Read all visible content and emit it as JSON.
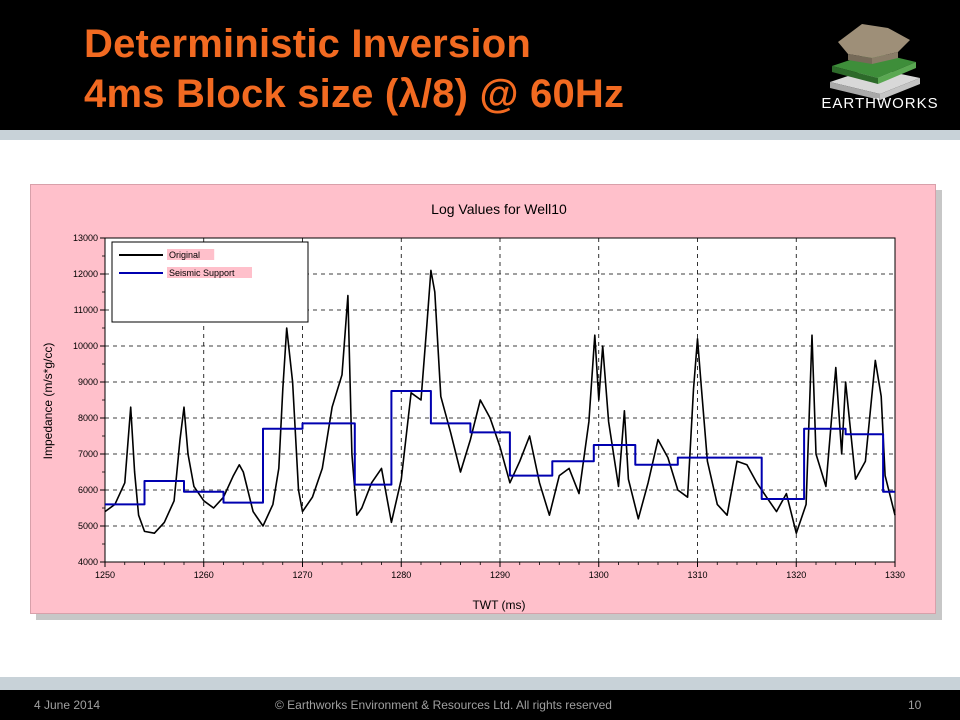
{
  "slide": {
    "title_line_1": "Deterministic Inversion",
    "title_line_2": "4ms Block size (λ/8) @ 60Hz",
    "logo_text": "EARTHWORKS",
    "footer_date": "4 June 2014",
    "footer_copyright": "© Earthworks Environment & Resources Ltd.  All rights reserved",
    "footer_page": "10"
  },
  "colors": {
    "title": "#f26a21",
    "panel_background": "#ffc0cb",
    "original_series": "#000000",
    "seismic_series": "#0000b0",
    "grid": "#000000"
  },
  "chart_data": {
    "type": "line",
    "title": "Log Values for Well10",
    "xlabel": "TWT (ms)",
    "ylabel": "Impedance (m/s*g/cc)",
    "xlim": [
      1250,
      1330
    ],
    "ylim": [
      4000,
      13000
    ],
    "x_ticks": [
      1250,
      1260,
      1270,
      1280,
      1290,
      1300,
      1310,
      1320,
      1330
    ],
    "y_ticks": [
      4000,
      5000,
      6000,
      7000,
      8000,
      9000,
      10000,
      11000,
      12000,
      13000
    ],
    "grid": "dashed",
    "legend_position": "top-left",
    "series": [
      {
        "name": "Original",
        "style": "line",
        "x": [
          1250,
          1251,
          1252,
          1252.6,
          1253,
          1253.4,
          1254,
          1255,
          1256,
          1257,
          1257.6,
          1258,
          1258.4,
          1259,
          1260,
          1261,
          1262,
          1263,
          1263.6,
          1264,
          1265,
          1266,
          1267,
          1267.6,
          1268,
          1268.4,
          1269,
          1269.6,
          1270,
          1271,
          1272,
          1273,
          1274,
          1274.6,
          1275,
          1275.5,
          1276,
          1277,
          1278,
          1279,
          1280,
          1281,
          1282,
          1282.6,
          1283,
          1283.4,
          1284,
          1285,
          1286,
          1287,
          1288,
          1289,
          1290,
          1291,
          1292,
          1293,
          1294,
          1295,
          1296,
          1297,
          1298,
          1299,
          1299.6,
          1300,
          1300.4,
          1301,
          1302,
          1302.6,
          1303,
          1304,
          1305,
          1306,
          1307,
          1308,
          1309,
          1309.6,
          1310,
          1310.4,
          1311,
          1312,
          1313,
          1314,
          1315,
          1316,
          1317,
          1318,
          1319,
          1320,
          1321,
          1321.6,
          1322,
          1323,
          1324,
          1324.6,
          1325,
          1326,
          1327,
          1328,
          1328.6,
          1329,
          1330
        ],
        "y": [
          5400,
          5600,
          6200,
          8300,
          6500,
          5300,
          4850,
          4800,
          5100,
          5700,
          7400,
          8300,
          7000,
          6100,
          5700,
          5500,
          5800,
          6400,
          6700,
          6500,
          5400,
          5000,
          5600,
          6600,
          8800,
          10500,
          9000,
          6000,
          5400,
          5800,
          6600,
          8300,
          9200,
          11400,
          7000,
          5300,
          5500,
          6200,
          6600,
          5100,
          6300,
          8700,
          8500,
          10600,
          12100,
          11500,
          8600,
          7600,
          6500,
          7400,
          8500,
          8000,
          7200,
          6200,
          6800,
          7500,
          6200,
          5300,
          6400,
          6600,
          5900,
          7900,
          10300,
          8500,
          10000,
          7900,
          6100,
          8200,
          6300,
          5200,
          6200,
          7400,
          6900,
          6000,
          5800,
          8800,
          10200,
          8800,
          6800,
          5600,
          5300,
          6800,
          6700,
          6200,
          5800,
          5400,
          5900,
          4800,
          5600,
          10300,
          7000,
          6100,
          9400,
          7000,
          9000,
          6300,
          6800,
          9600,
          8600,
          6400,
          5300
        ]
      },
      {
        "name": "Seismic Support",
        "style": "step",
        "x": [
          1250,
          1254,
          1258,
          1262,
          1266,
          1270,
          1274,
          1275.3,
          1279,
          1283,
          1287,
          1291,
          1295.3,
          1299.5,
          1303.7,
          1308,
          1312,
          1316.5,
          1320.8,
          1325,
          1328.8,
          1330
        ],
        "y": [
          5600,
          6250,
          5950,
          5650,
          7700,
          7850,
          7850,
          6150,
          8750,
          7850,
          7600,
          6400,
          6800,
          7250,
          6700,
          6900,
          6900,
          5750,
          7700,
          7550,
          5950,
          5950
        ]
      }
    ]
  }
}
